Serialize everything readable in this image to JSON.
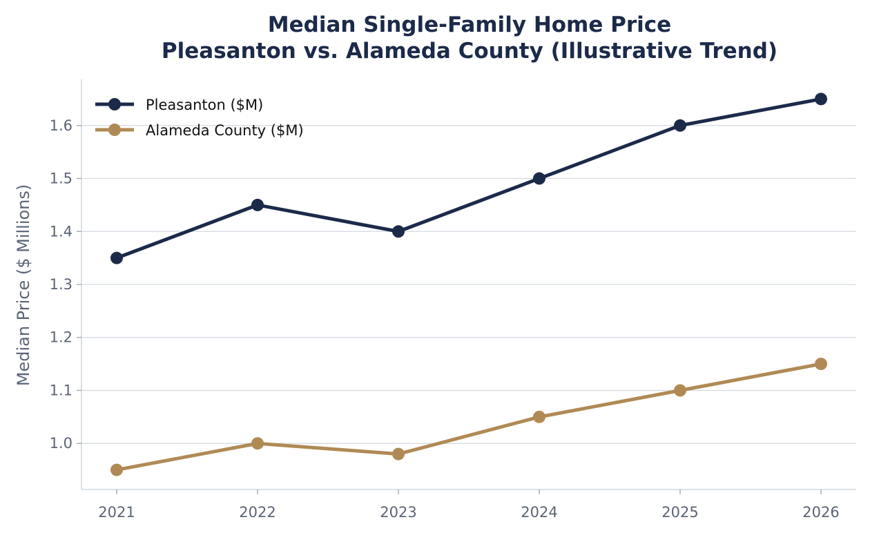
{
  "chart_data": {
    "type": "line",
    "title_lines": [
      "Median Single-Family Home Price",
      "Pleasanton vs. Alameda County (Illustrative Trend)"
    ],
    "xlabel": "",
    "ylabel": "Median Price ($ Millions)",
    "x": [
      "2021",
      "2022",
      "2023",
      "2024",
      "2025",
      "2026"
    ],
    "yticks": [
      1.0,
      1.1,
      1.2,
      1.3,
      1.4,
      1.5,
      1.6
    ],
    "ytick_labels": [
      "1.0",
      "1.1",
      "1.2",
      "1.3",
      "1.4",
      "1.5",
      "1.6"
    ],
    "ylim": [
      0.913,
      1.687
    ],
    "grid": "horizontal",
    "legend_position": "top-left",
    "series": [
      {
        "name": "Pleasanton ($M)",
        "values": [
          1.35,
          1.45,
          1.4,
          1.5,
          1.6,
          1.65
        ],
        "color": "#1c2a4a"
      },
      {
        "name": "Alameda County ($M)",
        "values": [
          0.95,
          1.0,
          0.98,
          1.05,
          1.1,
          1.15
        ],
        "color": "#b08a55"
      }
    ]
  }
}
